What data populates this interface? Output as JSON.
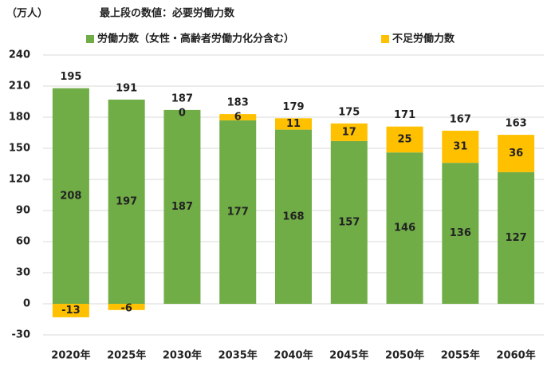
{
  "chart_data": {
    "type": "stacked_bar",
    "unit_label": "（万人）",
    "title": "最上段の数値：必要労働力数",
    "categories": [
      "2020年",
      "2025年",
      "2030年",
      "2035年",
      "2040年",
      "2045年",
      "2050年",
      "2055年",
      "2060年"
    ],
    "series": [
      {
        "name": "労働力数（女性・高齢者労働力化分含む）",
        "color": "#70ad47",
        "label_color": "#000000",
        "values": [
          208,
          197,
          187,
          177,
          168,
          157,
          146,
          136,
          127
        ]
      },
      {
        "name": "不足労働力数",
        "color": "#ffc000",
        "label_color": "#c00000",
        "values": [
          -13,
          -6,
          0,
          6,
          11,
          17,
          25,
          31,
          36
        ]
      }
    ],
    "totals": [
      195,
      191,
      187,
      183,
      179,
      175,
      171,
      167,
      163
    ],
    "ylim": [
      -30,
      240
    ],
    "yticks": [
      -30,
      0,
      30,
      60,
      90,
      120,
      150,
      180,
      210,
      240
    ],
    "grid": true
  }
}
